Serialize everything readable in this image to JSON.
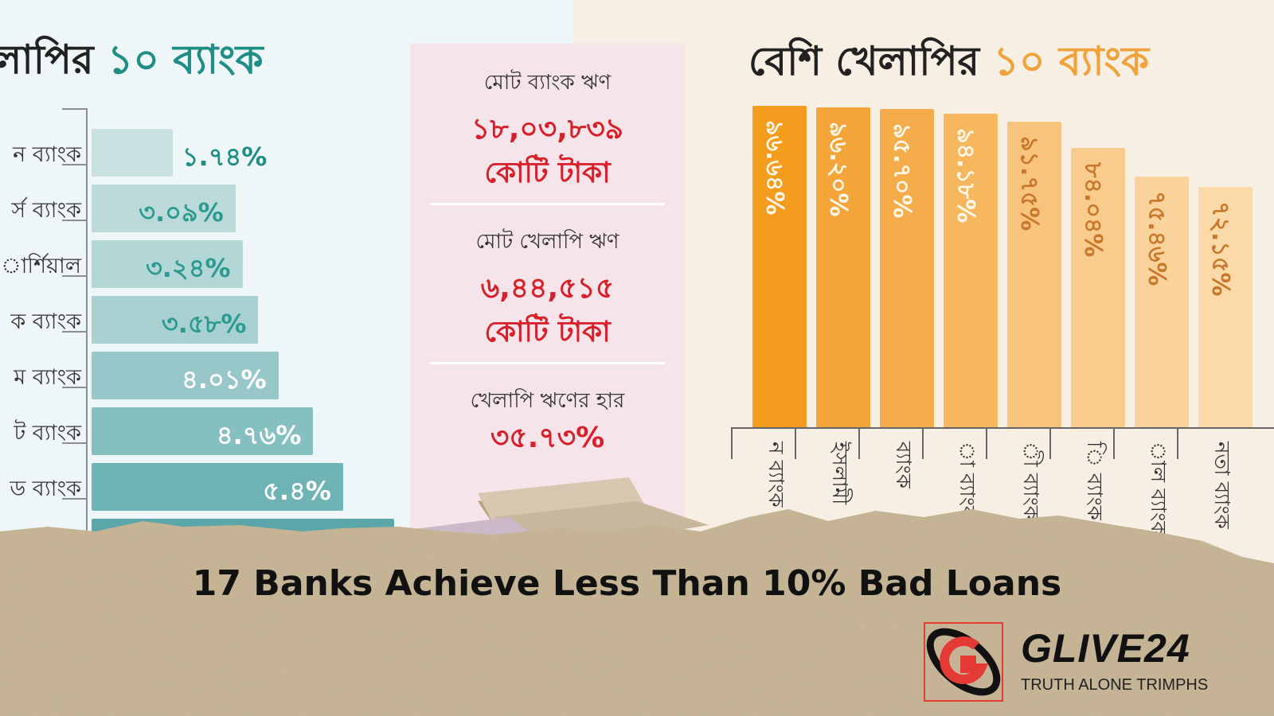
{
  "headline": "17 Banks Achieve Less Than 10% Bad Loans",
  "logo": {
    "name": "GLIVE24",
    "tagline": "TRUTH ALONE TRIMPHS",
    "accent": "#e53935"
  },
  "left_title": {
    "text": "লাপির ",
    "accent": "১০ ব্যাংক"
  },
  "right_title": {
    "text": "বেশি খেলাপির ",
    "accent": "১০ ব্যাংক"
  },
  "summary_panel": {
    "total_loan_label": "মোট ব্যাংক ঋণ",
    "total_loan_value": "১৮,০৩,৮৩৯",
    "total_loan_unit": "কোটি টাকা",
    "default_loan_label": "মোট খেলাপি ঋণ",
    "default_loan_value": "৬,৪৪,৫১৫",
    "default_loan_unit": "কোটি টাকা",
    "rate_label": "খেলাপি ঋণের হার",
    "rate_value": "৩৫.৭৩%"
  },
  "chart_data": [
    {
      "type": "bar",
      "orientation": "horizontal",
      "categories": [
        "ন ব্যাংক",
        "র্স ব্যাংক",
        "ার্শিয়াল",
        "ক ব্যাংক",
        "ম ব্যাংক",
        "ট ব্যাংক",
        "ড ব্যাংক",
        ""
      ],
      "values": [
        1.74,
        3.09,
        3.24,
        3.58,
        4.01,
        4.76,
        5.4,
        6.5
      ],
      "data_labels": [
        "১.৭৪%",
        "৩.০৯%",
        "৩.২৪%",
        "৩.৫৮%",
        "৪.০১%",
        "৪.৭৬%",
        "৫.৪%",
        ""
      ],
      "colors": [
        "#c9e1e1",
        "#bcdada",
        "#b3d6d6",
        "#a8d0d0",
        "#97c7c8",
        "#86bfc0",
        "#6fb3b4",
        "#5aa6a8"
      ]
    },
    {
      "type": "bar",
      "orientation": "vertical",
      "categories": [
        "ন ব্যাংক",
        "ইসলামী",
        "ব্যাংক",
        "া ব্যাংক",
        "ী ব্যাংক",
        "ি ব্যাংক",
        "াল ব্যাংক",
        "নতা ব্যাংক"
      ],
      "values": [
        96.64,
        96.2,
        95.7,
        94.18,
        91.75,
        84.04,
        75.46,
        72.15
      ],
      "data_labels": [
        "৯৬.৬৪%",
        "৯৬.২০%",
        "৯৫.৭০%",
        "৯৪.১৮%",
        "৯১.৭৫%",
        "৮৪.০৪%",
        "৭৫.৪৬%",
        "৭২.১৫%"
      ],
      "colors": [
        "#f39c1e",
        "#f4a53a",
        "#f5ad4c",
        "#f6b75f",
        "#f8c47d",
        "#f9cc8e",
        "#fad39c",
        "#fbd9a8"
      ]
    }
  ]
}
